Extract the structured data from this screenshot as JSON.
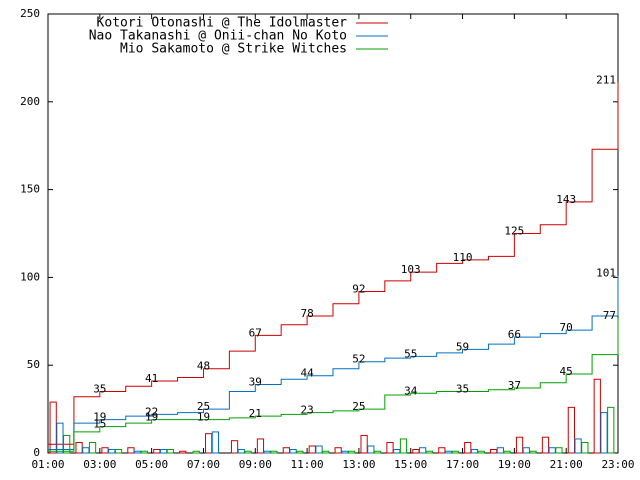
{
  "chart_data": {
    "type": "step",
    "x": [
      1,
      2,
      3,
      4,
      5,
      6,
      7,
      8,
      9,
      10,
      11,
      12,
      13,
      14,
      15,
      16,
      17,
      18,
      19,
      20,
      21,
      22,
      23
    ],
    "xlim": [
      1,
      23
    ],
    "xticks": [
      {
        "value": 1,
        "label": "01:00"
      },
      {
        "value": 3,
        "label": "03:00"
      },
      {
        "value": 5,
        "label": "05:00"
      },
      {
        "value": 7,
        "label": "07:00"
      },
      {
        "value": 9,
        "label": "09:00"
      },
      {
        "value": 11,
        "label": "11:00"
      },
      {
        "value": 13,
        "label": "13:00"
      },
      {
        "value": 15,
        "label": "15:00"
      },
      {
        "value": 17,
        "label": "17:00"
      },
      {
        "value": 19,
        "label": "19:00"
      },
      {
        "value": 21,
        "label": "21:00"
      },
      {
        "value": 23,
        "label": "23:00"
      }
    ],
    "ylim": [
      0,
      250
    ],
    "yticks": [
      0,
      50,
      100,
      150,
      200,
      250
    ],
    "series": [
      {
        "name": "Kotori Otonashi @ The Idolmaster",
        "color": "#cc0000",
        "values": [
          5,
          32,
          35,
          38,
          41,
          43,
          48,
          58,
          67,
          73,
          78,
          85,
          92,
          98,
          103,
          108,
          110,
          112,
          125,
          130,
          143,
          173,
          211
        ],
        "counts": [
          29,
          6,
          3,
          3,
          2,
          1,
          11,
          7,
          8,
          3,
          4,
          3,
          10,
          6,
          2,
          3,
          6,
          2,
          9,
          9,
          26,
          42
        ]
      },
      {
        "name": "Nao Takanashi @ Onii-chan No Koto",
        "color": "#0070c0",
        "values": [
          2,
          17,
          19,
          21,
          22,
          23,
          25,
          35,
          39,
          42,
          44,
          48,
          52,
          54,
          55,
          57,
          59,
          62,
          66,
          68,
          70,
          78,
          101
        ],
        "counts": [
          17,
          3,
          2,
          1,
          2,
          0,
          12,
          2,
          1,
          2,
          4,
          1,
          4,
          2,
          3,
          1,
          2,
          3,
          3,
          3,
          8,
          23
        ]
      },
      {
        "name": "Mio Sakamoto @ Strike Witches",
        "color": "#00a000",
        "values": [
          1,
          12,
          15,
          17,
          19,
          19,
          19,
          20,
          21,
          22,
          23,
          24,
          25,
          33,
          34,
          35,
          35,
          36,
          37,
          40,
          45,
          56,
          77
        ],
        "counts": [
          10,
          6,
          2,
          1,
          2,
          1,
          0,
          1,
          1,
          1,
          1,
          1,
          1,
          8,
          1,
          1,
          1,
          1,
          1,
          3,
          6,
          26
        ]
      }
    ]
  }
}
